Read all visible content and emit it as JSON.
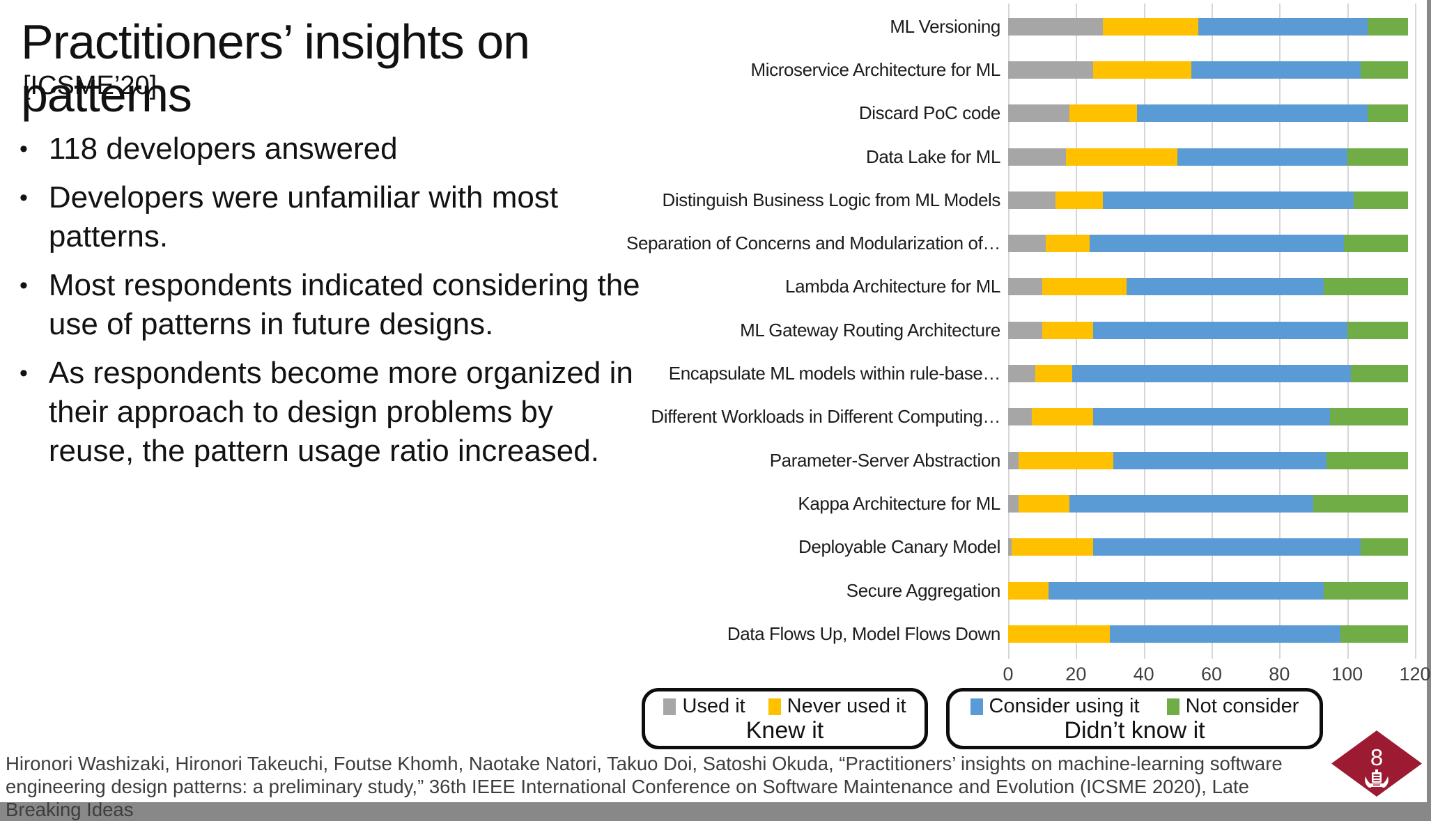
{
  "slide": {
    "title": "Practitioners’ insights on patterns",
    "subtitle": "[ICSME’20]",
    "bullet_marker": "•",
    "bullets": [
      "118 developers answered",
      "Developers were unfamiliar with most patterns.",
      "Most respondents indicated considering the use of patterns in future designs.",
      "As respondents become more organized in their approach to design problems by reuse, the pattern usage ratio increased."
    ],
    "footer_line1": "Hironori Washizaki, Hironori Takeuchi, Foutse Khomh, Naotake Natori, Takuo Doi, Satoshi Okuda, “Practitioners’ insights on machine-learning software",
    "footer_line2": "engineering design patterns: a preliminary study,” 36th IEEE International Conference on Software Maintenance and Evolution (ICSME 2020), Late Breaking Ideas",
    "page_number": "8",
    "colors": {
      "diamond": "#9C1B33",
      "crest_icon": "#ffffff"
    }
  },
  "chart_data": {
    "type": "bar",
    "orientation": "horizontal",
    "stacked": true,
    "grid": true,
    "xlim": [
      0,
      120
    ],
    "xticks": [
      0,
      20,
      40,
      60,
      80,
      100,
      120
    ],
    "total_respondents": 118,
    "categories": [
      "ML Versioning",
      "Microservice Architecture for ML",
      "Discard PoC code",
      "Data Lake for ML",
      "Distinguish Business Logic from ML Models",
      "Separation of Concerns and Modularization of…",
      "Lambda Architecture for ML",
      "ML Gateway Routing Architecture",
      "Encapsulate ML models within rule-base…",
      "Different Workloads in Different Computing…",
      "Parameter-Server Abstraction",
      "Kappa Architecture for ML",
      "Deployable Canary Model",
      "Secure Aggregation",
      "Data Flows Up, Model Flows Down"
    ],
    "series": [
      {
        "name": "Used it",
        "color": "#A6A6A6",
        "values": [
          28,
          25,
          18,
          17,
          14,
          11,
          10,
          10,
          8,
          7,
          3,
          3,
          1,
          0,
          0
        ]
      },
      {
        "name": "Never used it",
        "color": "#FFC000",
        "values": [
          28,
          29,
          20,
          33,
          14,
          13,
          25,
          15,
          11,
          18,
          28,
          15,
          24,
          12,
          30
        ]
      },
      {
        "name": "Consider using it",
        "color": "#5B9BD5",
        "values": [
          50,
          50,
          68,
          50,
          74,
          75,
          58,
          75,
          82,
          70,
          63,
          72,
          79,
          81,
          68
        ]
      },
      {
        "name": "Not consider",
        "color": "#70AD47",
        "values": [
          12,
          14,
          12,
          18,
          16,
          19,
          25,
          18,
          17,
          23,
          24,
          28,
          14,
          25,
          20
        ]
      }
    ],
    "legend_groups": [
      {
        "label": "Knew it",
        "series": [
          "Used it",
          "Never used it"
        ]
      },
      {
        "label": "Didn’t know it",
        "series": [
          "Consider using it",
          "Not consider"
        ]
      }
    ]
  }
}
